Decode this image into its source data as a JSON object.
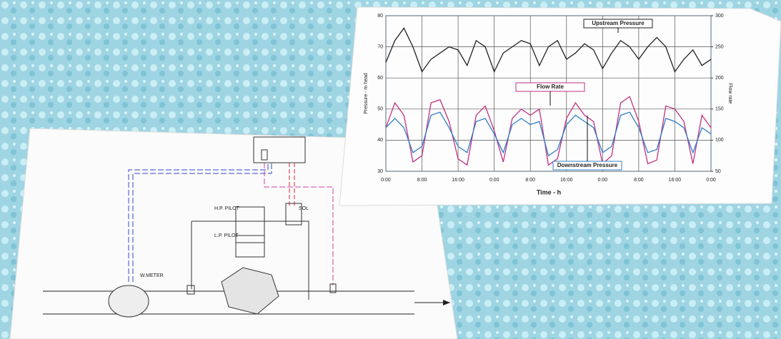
{
  "chart_data": {
    "type": "line",
    "xlabel": "Time - h",
    "ylabel": "Pressure - m head",
    "y2label": "Flow rate",
    "x": [
      0,
      2,
      4,
      6,
      8,
      10,
      12,
      14,
      16,
      18,
      20,
      22,
      24,
      26,
      28,
      30,
      32,
      34,
      36,
      38,
      40,
      42,
      44,
      46,
      48,
      50,
      52,
      54,
      56,
      58,
      60,
      62,
      64,
      66,
      68,
      70,
      72
    ],
    "xlim": [
      0,
      72
    ],
    "xticks": [
      {
        "value": 0,
        "label": "0:00"
      },
      {
        "value": 8,
        "label": "8:00"
      },
      {
        "value": 16,
        "label": "16:00"
      },
      {
        "value": 24,
        "label": "0:00"
      },
      {
        "value": 32,
        "label": "8:00"
      },
      {
        "value": 40,
        "label": "16:00"
      },
      {
        "value": 48,
        "label": "0:00"
      },
      {
        "value": 56,
        "label": "8:00"
      },
      {
        "value": 64,
        "label": "16:00"
      },
      {
        "value": 72,
        "label": "0:00"
      }
    ],
    "ylim": [
      30,
      80
    ],
    "yticks": [
      30,
      40,
      50,
      60,
      70,
      80
    ],
    "y2lim": [
      50,
      300
    ],
    "y2ticks": [
      50,
      100,
      150,
      200,
      250,
      300
    ],
    "grid": true,
    "series": [
      {
        "name": "Upstream Pressure",
        "color": "#222222",
        "values": [
          65,
          72,
          76,
          70,
          62,
          66,
          68,
          70,
          69,
          64,
          72,
          70,
          62,
          68,
          70,
          72,
          71,
          64,
          70,
          72,
          66,
          68,
          71,
          69,
          63,
          68,
          72,
          70,
          66,
          70,
          73,
          70,
          62,
          66,
          69,
          64,
          66
        ]
      },
      {
        "name": "Flow Rate",
        "color": "#c0307f",
        "axis": "y2",
        "values": [
          120,
          160,
          140,
          65,
          75,
          160,
          165,
          130,
          70,
          60,
          140,
          155,
          115,
          65,
          135,
          150,
          140,
          150,
          60,
          70,
          135,
          160,
          140,
          130,
          62,
          75,
          160,
          170,
          130,
          62,
          68,
          155,
          150,
          130,
          62,
          140,
          120
        ]
      },
      {
        "name": "Downstream Pressure",
        "color": "#2f7fc8",
        "values": [
          44,
          47,
          44,
          36,
          38,
          48,
          49,
          44,
          38,
          36,
          46,
          47,
          42,
          36,
          45,
          47,
          45,
          46,
          35,
          37,
          45,
          48,
          46,
          44,
          36,
          38,
          48,
          49,
          44,
          36,
          37,
          47,
          46,
          44,
          36,
          44,
          42
        ]
      }
    ]
  },
  "diagram": {
    "labels": [
      "H.P. PILOT",
      "L.P. PILOT",
      "SOL",
      "W.METER"
    ]
  }
}
